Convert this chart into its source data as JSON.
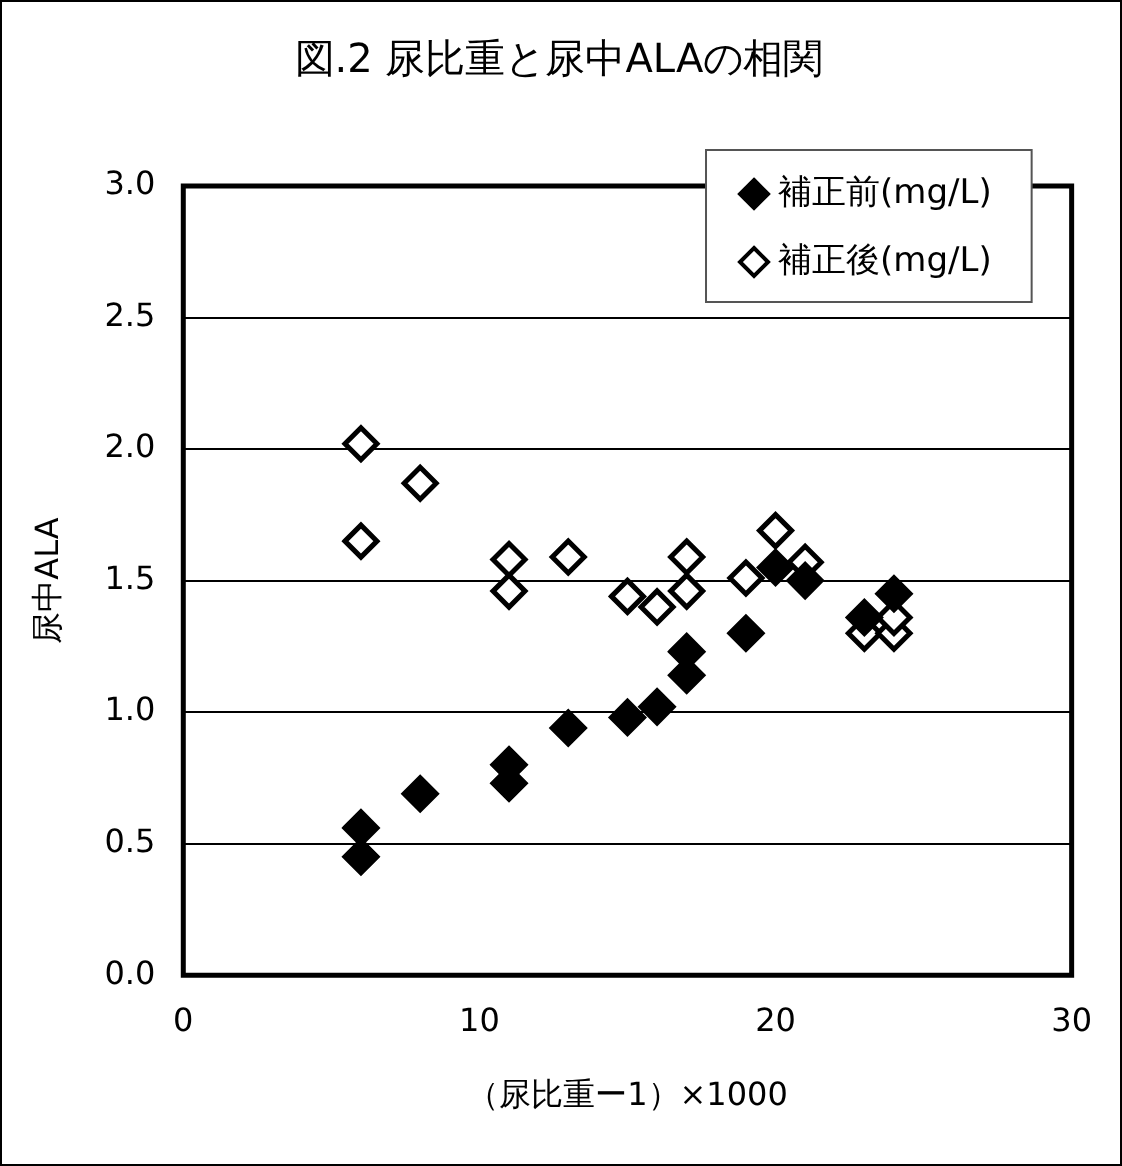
{
  "chart_data": {
    "type": "scatter",
    "title": "図.2 尿比重と尿中ALAの相関",
    "xlabel": "（尿比重ー1）×1000",
    "ylabel": "尿中ALA",
    "xlim": [
      0,
      30
    ],
    "xticks": [
      0,
      10,
      20,
      30
    ],
    "ylim": [
      0,
      3
    ],
    "yticks": [
      {
        "value": 0,
        "label": "0.0"
      },
      {
        "value": 0.5,
        "label": "0.5"
      },
      {
        "value": 1,
        "label": "1.0"
      },
      {
        "value": 1.5,
        "label": "1.5"
      },
      {
        "value": 2,
        "label": "2.0"
      },
      {
        "value": 2.5,
        "label": "2.5"
      },
      {
        "value": 3,
        "label": "3.0"
      }
    ],
    "grid": "y",
    "legend": "top right",
    "marker": "diamond",
    "series": [
      {
        "name": "補正前(mg/L)",
        "color": "#000000",
        "x": [
          6,
          6,
          8,
          11,
          11,
          13,
          15,
          16,
          17,
          17,
          19,
          20,
          21,
          23,
          24
        ],
        "values": [
          0.45,
          0.56,
          0.69,
          0.73,
          0.8,
          0.94,
          0.98,
          1.02,
          1.14,
          1.23,
          1.3,
          1.55,
          1.5,
          1.36,
          1.45
        ]
      },
      {
        "name": "補正後(mg/L)",
        "color": "#ffffff",
        "x": [
          6,
          6,
          8,
          11,
          11,
          13,
          15,
          16,
          17,
          17,
          19,
          20,
          21,
          23,
          24,
          24
        ],
        "values": [
          2.02,
          1.65,
          1.87,
          1.58,
          1.46,
          1.59,
          1.44,
          1.4,
          1.59,
          1.46,
          1.51,
          1.69,
          1.57,
          1.3,
          1.3,
          1.36
        ]
      }
    ]
  }
}
